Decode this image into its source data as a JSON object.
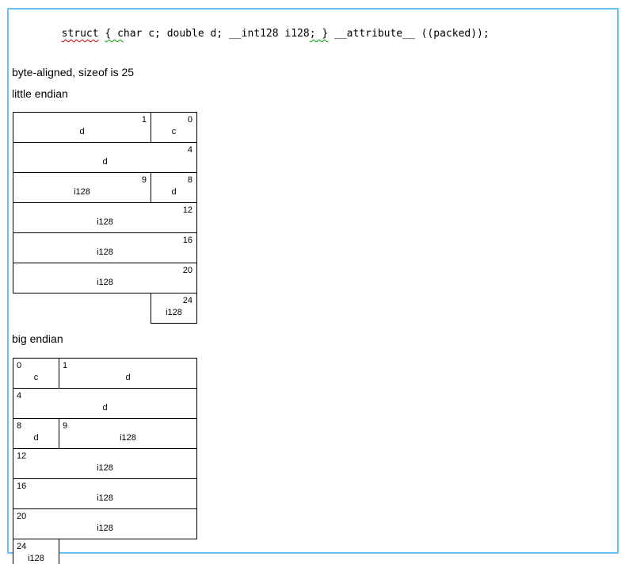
{
  "page": {
    "frame_color": "#6bc0f2",
    "table_border_color": "#000000",
    "squiggle_red": "#cc0000",
    "squiggle_green": "#00a000"
  },
  "code": {
    "seg_struct": "struct",
    "seg_space": " ",
    "seg_open_brace": "{ c",
    "seg_middle": "har c; double d; __int128 i128",
    "seg_close_brace": "; }",
    "seg_tail": " __attribute__ ((packed));"
  },
  "notes": {
    "sizeof_line": "byte-aligned, sizeof is 25"
  },
  "little_endian": {
    "heading": "little endian",
    "rows": [
      {
        "cells": [
          {
            "offset": "1",
            "label": "d"
          },
          {
            "offset": "0",
            "label": "c"
          }
        ]
      },
      {
        "cells": [
          {
            "offset": "4",
            "label": "d"
          }
        ]
      },
      {
        "cells": [
          {
            "offset": "9",
            "label": "i128"
          },
          {
            "offset": "8",
            "label": "d"
          }
        ]
      },
      {
        "cells": [
          {
            "offset": "12",
            "label": "i128"
          }
        ]
      },
      {
        "cells": [
          {
            "offset": "16",
            "label": "i128"
          }
        ]
      },
      {
        "cells": [
          {
            "offset": "20",
            "label": "i128"
          }
        ]
      },
      {
        "cells": [
          {
            "offset": "24",
            "label": "i128"
          }
        ]
      }
    ]
  },
  "big_endian": {
    "heading": "big endian",
    "rows": [
      {
        "cells": [
          {
            "offset": "0",
            "label": "c"
          },
          {
            "offset": "1",
            "label": "d"
          }
        ]
      },
      {
        "cells": [
          {
            "offset": "4",
            "label": "d"
          }
        ]
      },
      {
        "cells": [
          {
            "offset": "8",
            "label": "d"
          },
          {
            "offset": "9",
            "label": "i128"
          }
        ]
      },
      {
        "cells": [
          {
            "offset": "12",
            "label": "i128"
          }
        ]
      },
      {
        "cells": [
          {
            "offset": "16",
            "label": "i128"
          }
        ]
      },
      {
        "cells": [
          {
            "offset": "20",
            "label": "i128"
          }
        ]
      },
      {
        "cells": [
          {
            "offset": "24",
            "label": "i128"
          }
        ]
      }
    ]
  }
}
